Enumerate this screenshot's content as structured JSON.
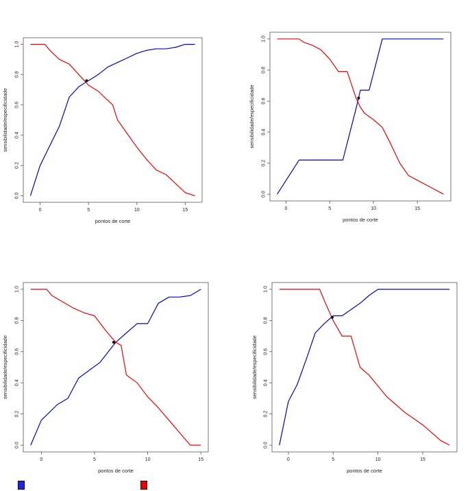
{
  "chart_data": [
    {
      "type": "line",
      "xlabel": "pontos de corte",
      "ylabel": "sensibilidade/especificidade",
      "xlim": [
        -1,
        16
      ],
      "ylim": [
        0,
        1
      ],
      "xticks": [
        "0",
        "5",
        "10",
        "15"
      ],
      "yticks": [
        "0.0",
        "0.2",
        "0.4",
        "0.6",
        "0.8",
        "1.0"
      ],
      "series": [
        {
          "color": "#0000cc",
          "points": [
            [
              -1,
              0.0
            ],
            [
              0,
              0.2
            ],
            [
              1,
              0.33
            ],
            [
              2,
              0.46
            ],
            [
              3,
              0.65
            ],
            [
              4,
              0.72
            ],
            [
              5,
              0.76
            ],
            [
              6,
              0.8
            ],
            [
              7,
              0.85
            ],
            [
              8,
              0.88
            ],
            [
              9,
              0.91
            ],
            [
              10,
              0.94
            ],
            [
              11,
              0.96
            ],
            [
              12,
              0.97
            ],
            [
              13,
              0.97
            ],
            [
              14,
              0.98
            ],
            [
              15,
              1.0
            ],
            [
              16,
              1.0
            ]
          ]
        },
        {
          "color": "#ee0000",
          "points": [
            [
              -1,
              1.0
            ],
            [
              0.5,
              1.0
            ],
            [
              1,
              0.96
            ],
            [
              2,
              0.9
            ],
            [
              3,
              0.87
            ],
            [
              4,
              0.8
            ],
            [
              5,
              0.73
            ],
            [
              6,
              0.69
            ],
            [
              7,
              0.63
            ],
            [
              7.5,
              0.6
            ],
            [
              8,
              0.5
            ],
            [
              9,
              0.41
            ],
            [
              10,
              0.32
            ],
            [
              11,
              0.24
            ],
            [
              12,
              0.17
            ],
            [
              13,
              0.14
            ],
            [
              14,
              0.08
            ],
            [
              15,
              0.02
            ],
            [
              16,
              0.0
            ]
          ]
        }
      ],
      "intersection": [
        4.8,
        0.76
      ]
    },
    {
      "type": "line",
      "xlabel": "pontos de corte",
      "ylabel": "sensibilidade/especificidade",
      "xlim": [
        -1,
        18
      ],
      "ylim": [
        0,
        1
      ],
      "xticks": [
        "0",
        "5",
        "10",
        "15"
      ],
      "yticks": [
        "0.0",
        "0.2",
        "0.4",
        "0.6",
        "0.8",
        "1.0"
      ],
      "series": [
        {
          "color": "#0000cc",
          "points": [
            [
              -1,
              0.0
            ],
            [
              1.5,
              0.22
            ],
            [
              2,
              0.22
            ],
            [
              6.5,
              0.22
            ],
            [
              8,
              0.55
            ],
            [
              8.5,
              0.67
            ],
            [
              9.5,
              0.67
            ],
            [
              11,
              1.0
            ],
            [
              18,
              1.0
            ]
          ]
        },
        {
          "color": "#ee0000",
          "points": [
            [
              -1,
              1.0
            ],
            [
              1.5,
              1.0
            ],
            [
              2,
              0.98
            ],
            [
              3,
              0.96
            ],
            [
              4,
              0.93
            ],
            [
              5,
              0.87
            ],
            [
              6,
              0.79
            ],
            [
              7,
              0.79
            ],
            [
              8,
              0.62
            ],
            [
              8.5,
              0.56
            ],
            [
              9,
              0.52
            ],
            [
              10,
              0.48
            ],
            [
              11,
              0.43
            ],
            [
              12,
              0.32
            ],
            [
              13,
              0.2
            ],
            [
              14,
              0.12
            ],
            [
              15,
              0.09
            ],
            [
              16,
              0.06
            ],
            [
              17,
              0.03
            ],
            [
              18,
              0.0
            ]
          ]
        }
      ],
      "intersection": [
        8.3,
        0.62
      ]
    },
    {
      "type": "line",
      "xlabel": "pontos de corte",
      "ylabel": "sensibilidade/especificidade",
      "xlim": [
        -1,
        15
      ],
      "ylim": [
        0,
        1
      ],
      "xticks": [
        "0",
        "5",
        "10",
        "15"
      ],
      "yticks": [
        "0.0",
        "0.2",
        "0.4",
        "0.6",
        "0.8",
        "1.0"
      ],
      "series": [
        {
          "color": "#0000cc",
          "points": [
            [
              -1,
              0.0
            ],
            [
              0,
              0.16
            ],
            [
              1.5,
              0.26
            ],
            [
              2.5,
              0.3
            ],
            [
              3.5,
              0.43
            ],
            [
              4.5,
              0.48
            ],
            [
              5.5,
              0.53
            ],
            [
              7,
              0.66
            ],
            [
              8,
              0.72
            ],
            [
              9,
              0.78
            ],
            [
              10,
              0.78
            ],
            [
              11,
              0.91
            ],
            [
              12,
              0.95
            ],
            [
              13,
              0.95
            ],
            [
              14,
              0.96
            ],
            [
              15,
              1.0
            ]
          ]
        },
        {
          "color": "#ee0000",
          "points": [
            [
              -1,
              1.0
            ],
            [
              0.5,
              1.0
            ],
            [
              1,
              0.96
            ],
            [
              2,
              0.92
            ],
            [
              3,
              0.88
            ],
            [
              4,
              0.85
            ],
            [
              5,
              0.83
            ],
            [
              6,
              0.74
            ],
            [
              6.5,
              0.7
            ],
            [
              7,
              0.66
            ],
            [
              7.5,
              0.64
            ],
            [
              8,
              0.45
            ],
            [
              9,
              0.4
            ],
            [
              10,
              0.31
            ],
            [
              11,
              0.24
            ],
            [
              12,
              0.16
            ],
            [
              13,
              0.08
            ],
            [
              14,
              0.0
            ],
            [
              15,
              0.0
            ]
          ]
        }
      ],
      "intersection": [
        6.8,
        0.66
      ]
    },
    {
      "type": "line",
      "xlabel": "pontos de corte",
      "ylabel": "sensibilidade/especificidade",
      "xlim": [
        -1,
        18
      ],
      "ylim": [
        0,
        1
      ],
      "xticks": [
        "0",
        "5",
        "10",
        "15"
      ],
      "yticks": [
        "0.0",
        "0.2",
        "0.4",
        "0.6",
        "0.8",
        "1.0"
      ],
      "series": [
        {
          "color": "#0000cc",
          "points": [
            [
              -1,
              0.0
            ],
            [
              0,
              0.28
            ],
            [
              1,
              0.39
            ],
            [
              2,
              0.55
            ],
            [
              3,
              0.72
            ],
            [
              4,
              0.78
            ],
            [
              5,
              0.83
            ],
            [
              6,
              0.83
            ],
            [
              7,
              0.87
            ],
            [
              8,
              0.91
            ],
            [
              9,
              0.96
            ],
            [
              10,
              1.0
            ],
            [
              18,
              1.0
            ]
          ]
        },
        {
          "color": "#ee0000",
          "points": [
            [
              -1,
              1.0
            ],
            [
              3.5,
              1.0
            ],
            [
              4,
              0.93
            ],
            [
              5,
              0.8
            ],
            [
              6,
              0.7
            ],
            [
              7,
              0.7
            ],
            [
              8,
              0.5
            ],
            [
              9,
              0.45
            ],
            [
              10,
              0.38
            ],
            [
              11,
              0.31
            ],
            [
              12,
              0.26
            ],
            [
              13,
              0.21
            ],
            [
              14,
              0.17
            ],
            [
              15,
              0.13
            ],
            [
              16,
              0.08
            ],
            [
              17,
              0.03
            ],
            [
              18,
              0.0
            ]
          ]
        }
      ],
      "intersection": [
        4.9,
        0.82
      ]
    }
  ],
  "legend": [
    {
      "color": "#2222ee",
      "label": ""
    },
    {
      "color": "#ee0000",
      "label": ""
    }
  ]
}
